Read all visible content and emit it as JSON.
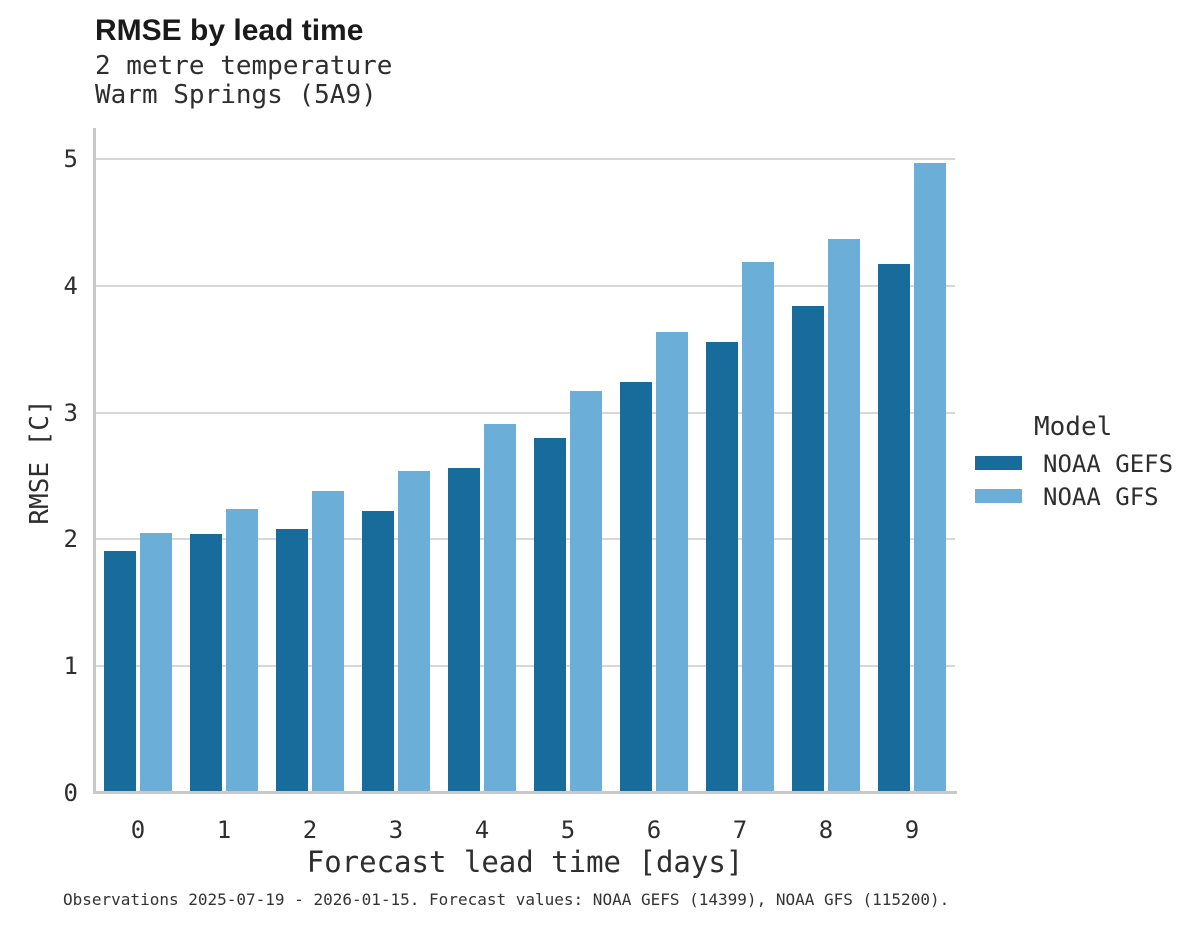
{
  "header": {
    "title": "RMSE by lead time",
    "subtitle1": "2 metre temperature",
    "subtitle2": "Warm Springs (5A9)"
  },
  "legend": {
    "title": "Model",
    "entries": [
      {
        "label": "NOAA GEFS",
        "color": "#186c9c"
      },
      {
        "label": "NOAA GFS",
        "color": "#6bafd8"
      }
    ]
  },
  "caption": "Observations 2025-07-19 - 2026-01-15. Forecast values: NOAA GEFS (14399), NOAA GFS (115200).",
  "chart_data": {
    "type": "bar",
    "title": "RMSE by lead time",
    "subtitle": [
      "2 metre temperature",
      "Warm Springs (5A9)"
    ],
    "xlabel": "Forecast lead time [days]",
    "ylabel": "RMSE [C]",
    "categories": [
      "0",
      "1",
      "2",
      "3",
      "4",
      "5",
      "6",
      "7",
      "8",
      "9"
    ],
    "series": [
      {
        "name": "NOAA GEFS",
        "color": "#186c9c",
        "values": [
          1.91,
          2.04,
          2.08,
          2.22,
          2.56,
          2.8,
          3.24,
          3.56,
          3.84,
          4.17
        ]
      },
      {
        "name": "NOAA GFS",
        "color": "#6bafd8",
        "values": [
          2.05,
          2.24,
          2.38,
          2.54,
          2.91,
          3.17,
          3.64,
          4.19,
          4.37,
          4.97
        ]
      }
    ],
    "ylim": [
      0,
      5
    ],
    "yticks": [
      0,
      1,
      2,
      3,
      4,
      5
    ],
    "grid": true,
    "legend_position": "right",
    "legend_title": "Model"
  }
}
